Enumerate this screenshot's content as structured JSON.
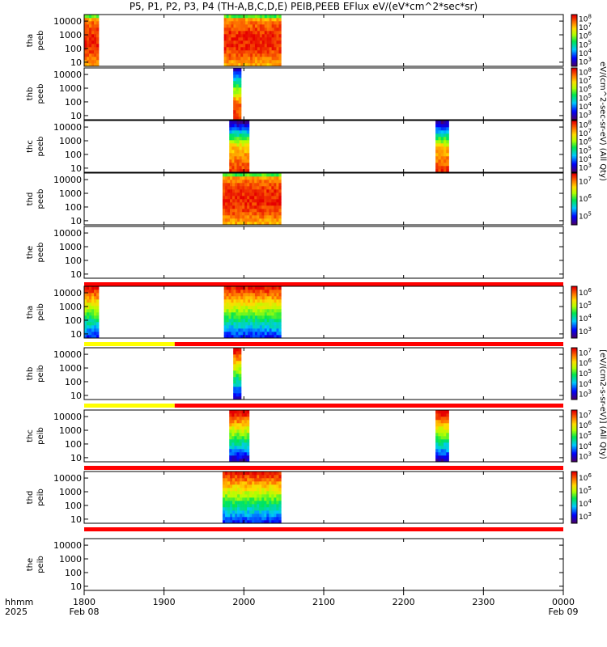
{
  "title": "P5, P1, P2, P3, P4 (TH-A,B,C,D,E) PEIB,PEEB EFlux eV/(eV*cm^2*sec*sr)",
  "xaxis": {
    "prefix": [
      "hhmm",
      "2025"
    ],
    "ticks": [
      {
        "top": "1800",
        "bottom": "Feb 08",
        "t": 0
      },
      {
        "top": "1900",
        "bottom": "",
        "t": 60
      },
      {
        "top": "2000",
        "bottom": "",
        "t": 120
      },
      {
        "top": "2100",
        "bottom": "",
        "t": 180
      },
      {
        "top": "2200",
        "bottom": "",
        "t": 240
      },
      {
        "top": "2300",
        "bottom": "",
        "t": 300
      },
      {
        "top": "0000",
        "bottom": "Feb 09",
        "t": 360
      }
    ]
  },
  "colorbar_titles": {
    "peeb": "eV/(cm^2-sec-sr-eV)  (All Qty)",
    "peib": "[eV/(cm2-s-sr-eV)]  (All Qty)"
  },
  "chart_data": {
    "type": "heatmap",
    "time_range_min": [
      0,
      360
    ],
    "y_scale": "log",
    "y_range_eV": [
      5,
      30000
    ],
    "y_ticks": [
      "10",
      "100",
      "1000",
      "10000"
    ],
    "panels": [
      {
        "label": [
          "tha",
          "peeb"
        ],
        "status_bar": null,
        "blocks": [
          {
            "t0": 0,
            "t1": 11,
            "type": "hot"
          },
          {
            "t0": 105,
            "t1": 148,
            "type": "hot"
          }
        ],
        "colorbar": [
          "10^3",
          "10^4",
          "10^5",
          "10^6",
          "10^7",
          "10^8"
        ]
      },
      {
        "label": [
          "thb",
          "peeb"
        ],
        "status_bar": null,
        "blocks": [
          {
            "t0": 112,
            "t1": 118,
            "type": "mixed"
          }
        ],
        "colorbar": [
          "10^3",
          "10^4",
          "10^5",
          "10^6",
          "10^7",
          "10^8"
        ]
      },
      {
        "label": [
          "thc",
          "peeb"
        ],
        "status_bar": null,
        "blocks": [
          {
            "t0": 109,
            "t1": 124,
            "type": "cold"
          },
          {
            "t0": 264,
            "t1": 274,
            "type": "cold"
          }
        ],
        "colorbar": [
          "10^3",
          "10^4",
          "10^5",
          "10^6",
          "10^7",
          "10^8"
        ]
      },
      {
        "label": [
          "thd",
          "peeb"
        ],
        "status_bar": null,
        "blocks": [
          {
            "t0": 104,
            "t1": 148,
            "type": "hot"
          }
        ],
        "colorbar": [
          "10^5",
          "10^6",
          "10^7"
        ]
      },
      {
        "label": [
          "the",
          "peeb"
        ],
        "status_bar": [
          {
            "t0": 0,
            "t1": 360,
            "color": "#ff0000"
          }
        ],
        "blocks": [],
        "colorbar": []
      },
      {
        "label": [
          "tha",
          "peib"
        ],
        "status_bar": [
          {
            "t0": 0,
            "t1": 68,
            "color": "#ffff00"
          },
          {
            "t0": 68,
            "t1": 360,
            "color": "#ff0000"
          }
        ],
        "blocks": [
          {
            "t0": 0,
            "t1": 11,
            "type": "ion"
          },
          {
            "t0": 105,
            "t1": 148,
            "type": "ion"
          }
        ],
        "colorbar": [
          "10^3",
          "10^4",
          "10^5",
          "10^6"
        ]
      },
      {
        "label": [
          "thb",
          "peib"
        ],
        "status_bar": [
          {
            "t0": 0,
            "t1": 68,
            "color": "#ffff00"
          },
          {
            "t0": 68,
            "t1": 360,
            "color": "#ff0000"
          }
        ],
        "blocks": [
          {
            "t0": 112,
            "t1": 118,
            "type": "ion_mixed"
          }
        ],
        "colorbar": [
          "10^3",
          "10^4",
          "10^5",
          "10^6",
          "10^7"
        ]
      },
      {
        "label": [
          "thc",
          "peib"
        ],
        "status_bar": [
          {
            "t0": 0,
            "t1": 360,
            "color": "#ff0000"
          }
        ],
        "blocks": [
          {
            "t0": 109,
            "t1": 124,
            "type": "ion_mixed"
          },
          {
            "t0": 264,
            "t1": 274,
            "type": "ion_mixed"
          }
        ],
        "colorbar": [
          "10^3",
          "10^4",
          "10^5",
          "10^6",
          "10^7"
        ]
      },
      {
        "label": [
          "thd",
          "peib"
        ],
        "status_bar": [
          {
            "t0": 0,
            "t1": 360,
            "color": "#ff0000"
          }
        ],
        "blocks": [
          {
            "t0": 104,
            "t1": 148,
            "type": "ion"
          }
        ],
        "colorbar": [
          "10^3",
          "10^4",
          "10^5",
          "10^6"
        ]
      },
      {
        "label": [
          "the",
          "peib"
        ],
        "status_bar": null,
        "blocks": [],
        "colorbar": []
      }
    ]
  }
}
